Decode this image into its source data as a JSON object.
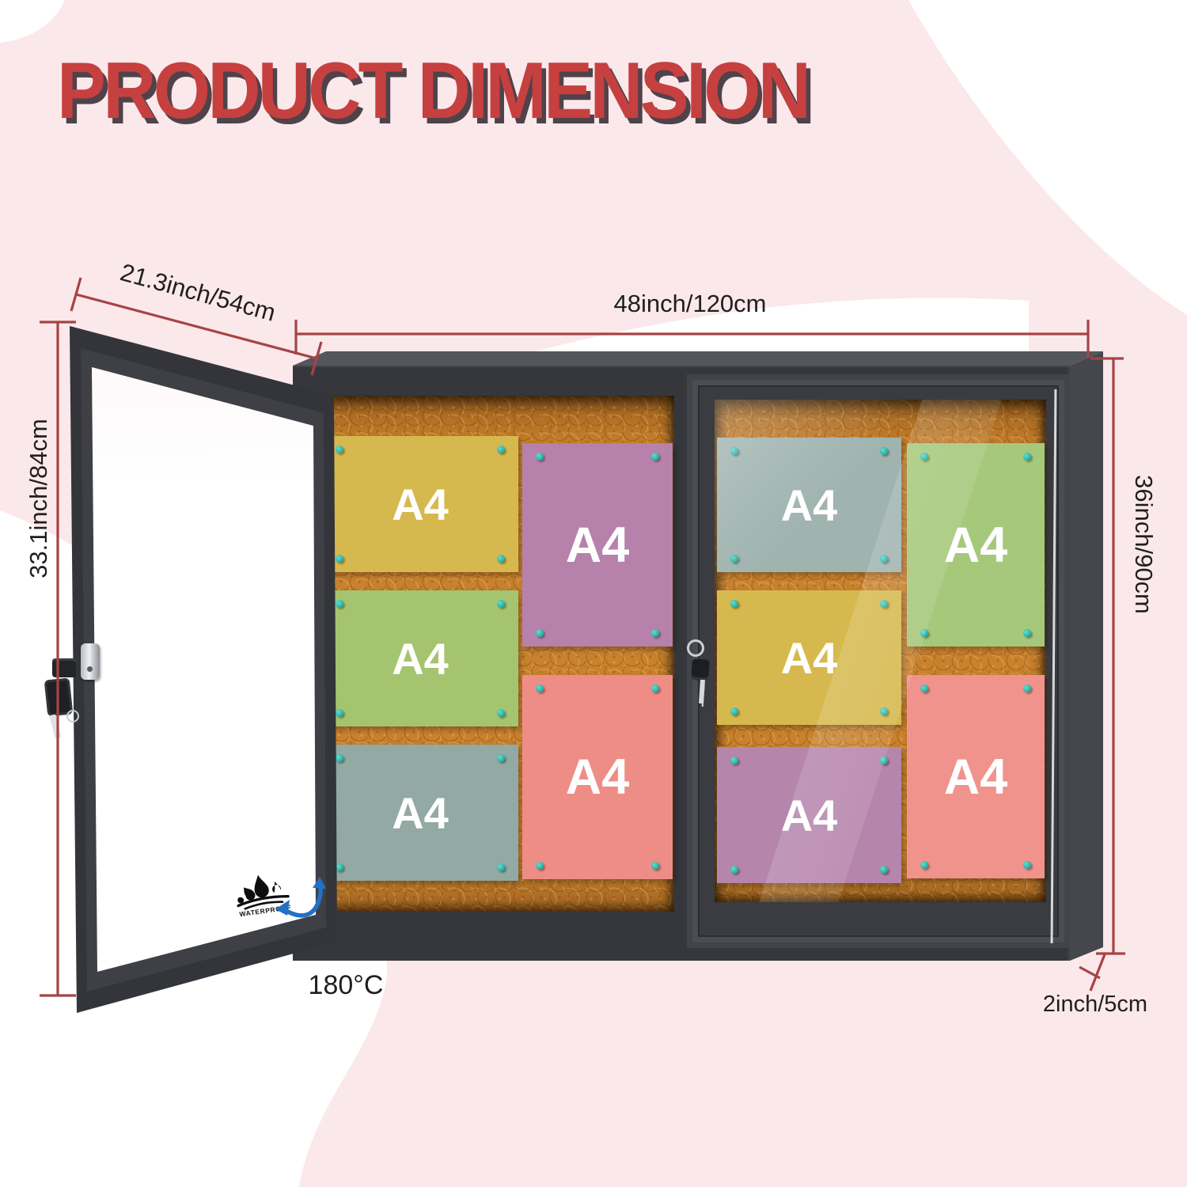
{
  "title": "PRODUCT DIMENSION",
  "dimensions": {
    "door_width": "21.3inch/54cm",
    "board_width": "48inch/120cm",
    "door_height": "33.1inch/84cm",
    "board_height": "36inch/90cm",
    "board_depth": "2inch/5cm",
    "door_open_angle": "180°C"
  },
  "door": {
    "waterproof_label": "WATERPROOF"
  },
  "board": {
    "left_compartment_sheets": [
      {
        "label": "A4",
        "color": "#d6b94e",
        "orientation": "landscape"
      },
      {
        "label": "A4",
        "color": "#a5c470",
        "orientation": "landscape"
      },
      {
        "label": "A4",
        "color": "#92a9a4",
        "orientation": "landscape"
      },
      {
        "label": "A4",
        "color": "#b681aa",
        "orientation": "portrait"
      },
      {
        "label": "A4",
        "color": "#ee8d85",
        "orientation": "portrait"
      }
    ],
    "right_compartment_sheets": [
      {
        "label": "A4",
        "color": "#9fb3af",
        "orientation": "landscape"
      },
      {
        "label": "A4",
        "color": "#d6b94e",
        "orientation": "landscape"
      },
      {
        "label": "A4",
        "color": "#b685ac",
        "orientation": "landscape"
      },
      {
        "label": "A4",
        "color": "#a6c87b",
        "orientation": "portrait"
      },
      {
        "label": "A4",
        "color": "#f0938d",
        "orientation": "portrait"
      }
    ]
  },
  "colors": {
    "background_pink": "#fbe8eb",
    "title_red": "#c6403f",
    "dimension_line_red": "#a64345",
    "frame_dark": "#35373c",
    "cork_orange": "#c8812d",
    "push_pin_teal": "#28b0a4",
    "swing_arrow_blue": "#2271c5"
  }
}
